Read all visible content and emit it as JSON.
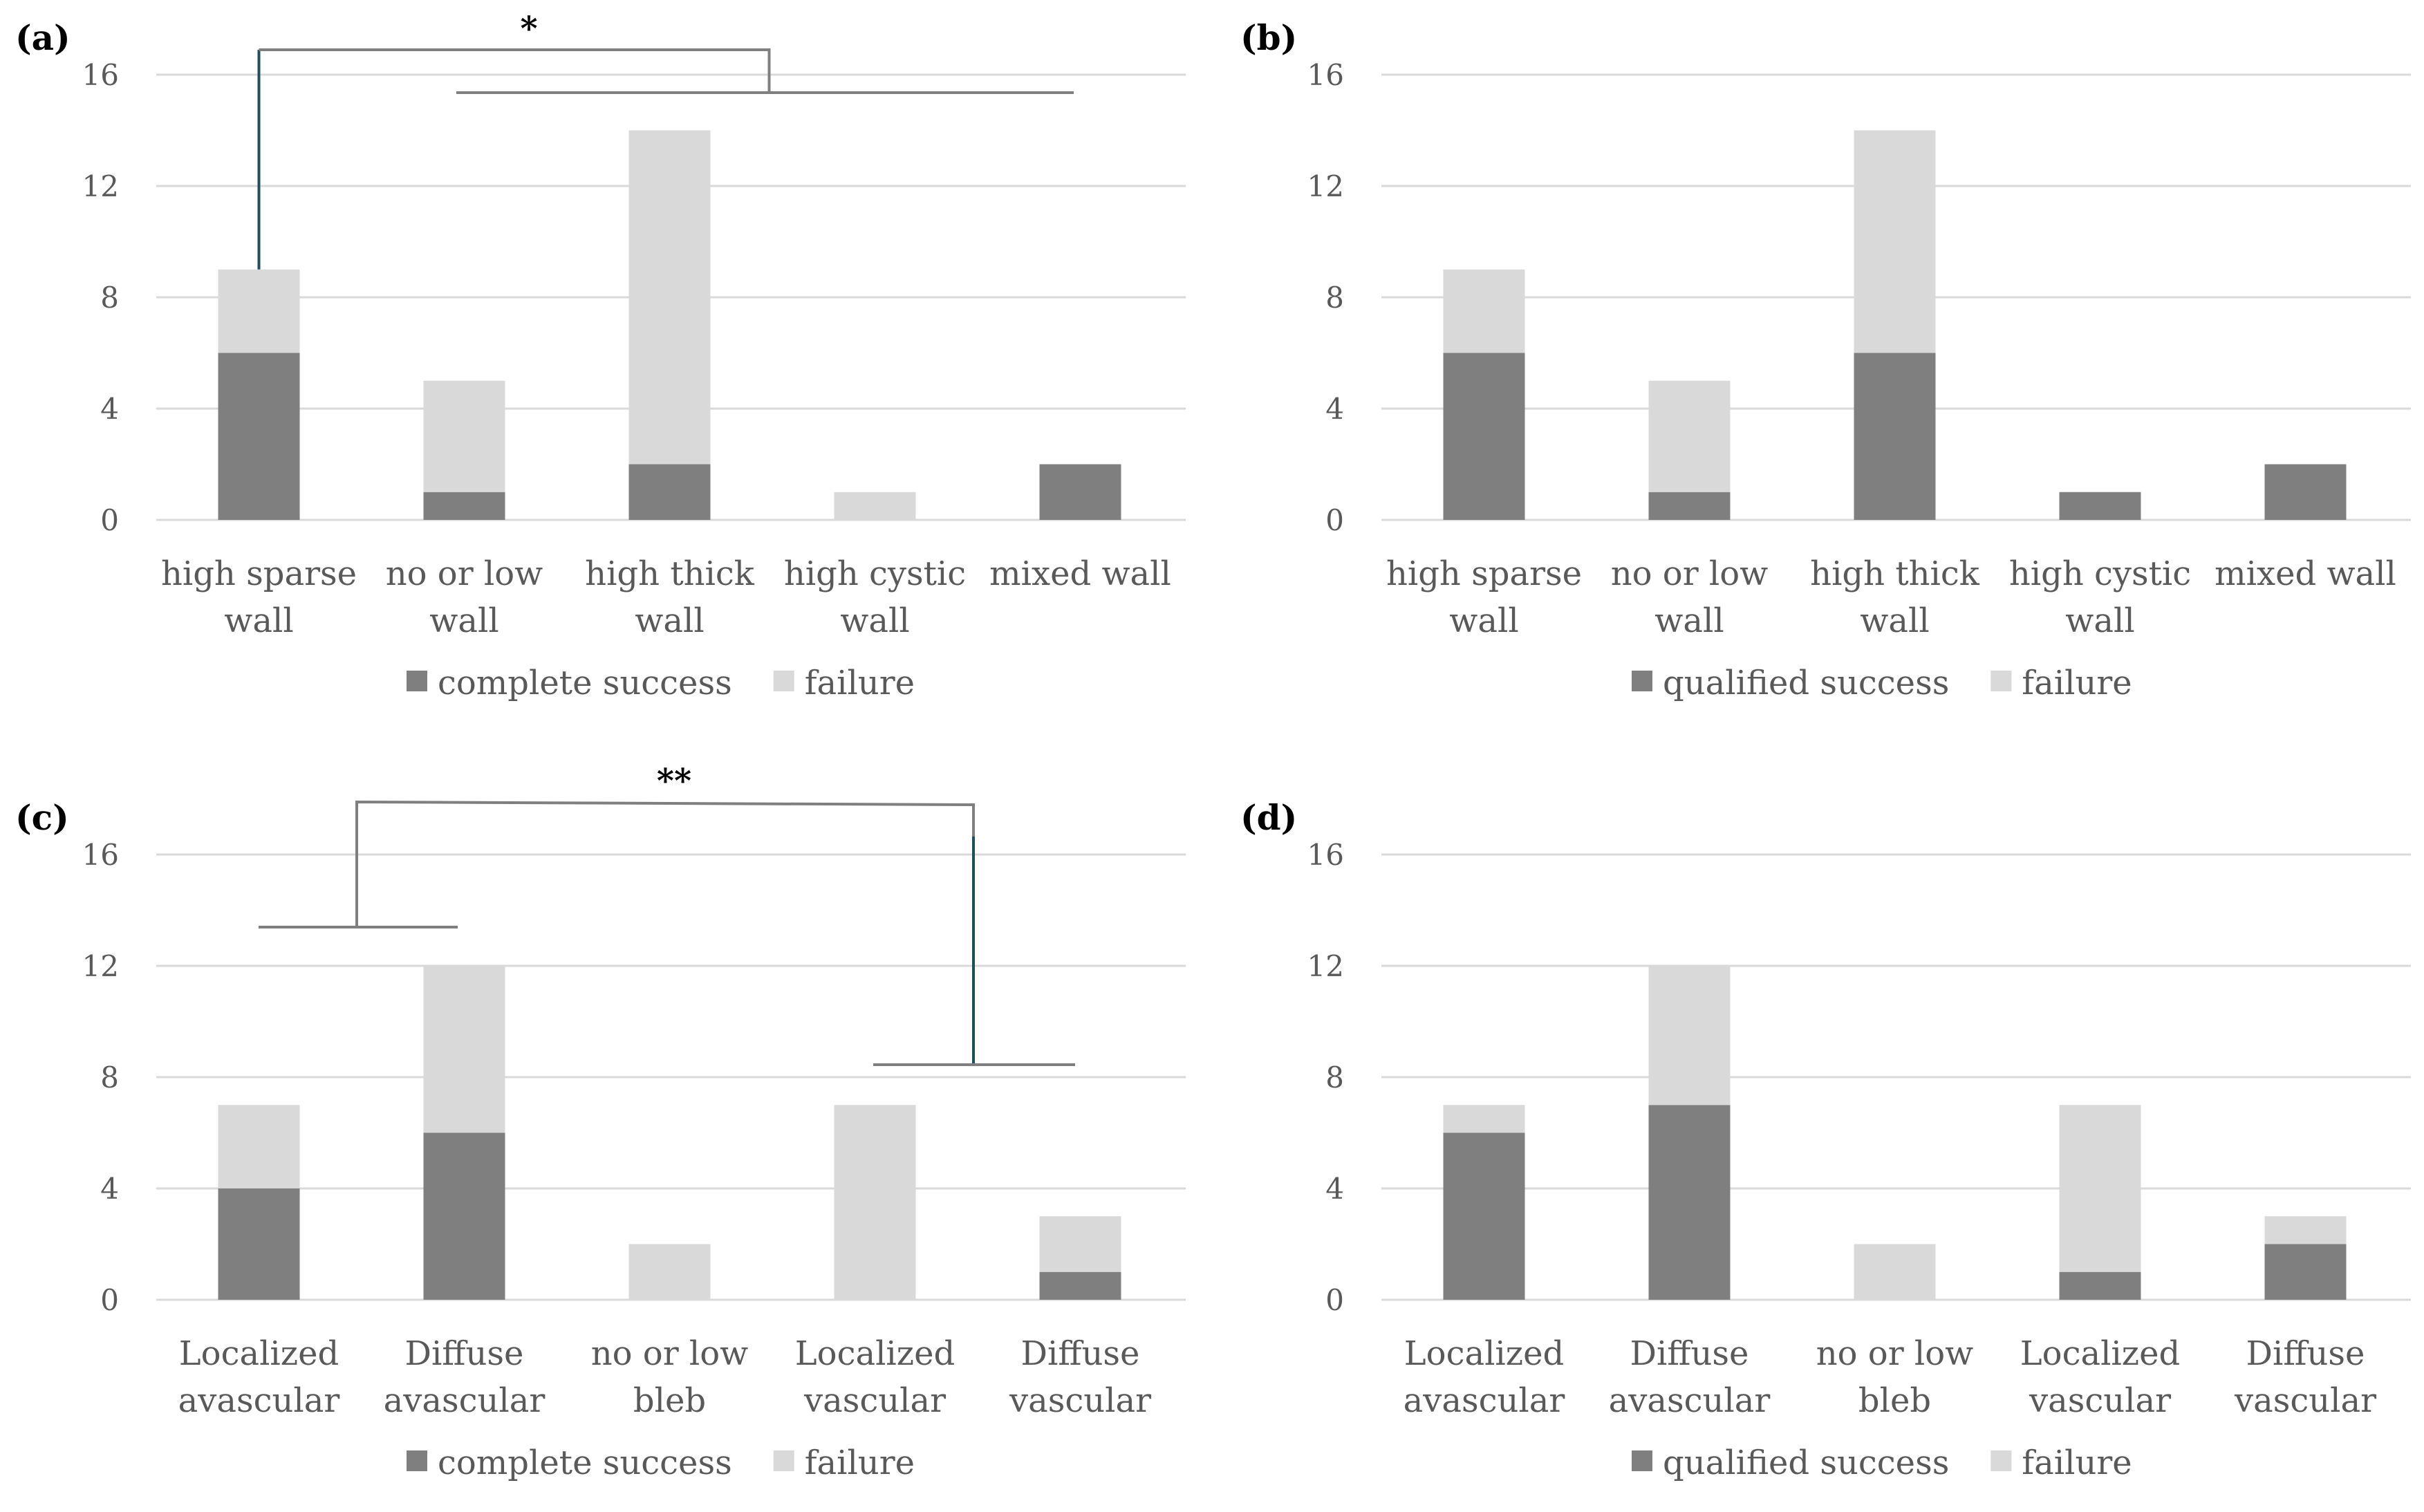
{
  "colors": {
    "success": "#7f7f7f",
    "failure": "#d9d9d9",
    "grid": "#d9d9d9",
    "text": "#595959",
    "bracket_gray": "#7f7f7f",
    "bracket_teal": "#1f4e5f"
  },
  "chart_data": [
    {
      "type": "bar",
      "panel": "(a)",
      "stacked": true,
      "categories": [
        [
          "high sparse",
          "wall"
        ],
        [
          "no or low",
          "wall"
        ],
        [
          "high thick",
          "wall"
        ],
        [
          "high cystic",
          "wall"
        ],
        [
          "mixed wall"
        ]
      ],
      "series": [
        {
          "name": "complete success",
          "values": [
            6,
            1,
            2,
            0,
            2
          ]
        },
        {
          "name": "failure",
          "values": [
            3,
            4,
            12,
            1,
            0
          ]
        }
      ],
      "ylim": [
        0,
        16
      ],
      "yticks": [
        "0",
        "4",
        "8",
        "12",
        "16"
      ],
      "grid": true,
      "legend": "bottom",
      "annotation": {
        "label": "*",
        "left_group": [
          0,
          0
        ],
        "right_group": [
          1,
          4
        ],
        "left_color": "teal"
      }
    },
    {
      "type": "bar",
      "panel": "(b)",
      "stacked": true,
      "categories": [
        [
          "high sparse",
          "wall"
        ],
        [
          "no or low",
          "wall"
        ],
        [
          "high thick",
          "wall"
        ],
        [
          "high cystic",
          "wall"
        ],
        [
          "mixed wall"
        ]
      ],
      "series": [
        {
          "name": "qualified success",
          "values": [
            6,
            1,
            6,
            1,
            2
          ]
        },
        {
          "name": "failure",
          "values": [
            3,
            4,
            8,
            0,
            0
          ]
        }
      ],
      "ylim": [
        0,
        16
      ],
      "yticks": [
        "0",
        "4",
        "8",
        "12",
        "16"
      ],
      "grid": true,
      "legend": "bottom"
    },
    {
      "type": "bar",
      "panel": "(c)",
      "stacked": true,
      "categories": [
        [
          "Localized",
          "avascular"
        ],
        [
          "Diffuse",
          "avascular"
        ],
        [
          "no or low",
          "bleb"
        ],
        [
          "Localized",
          "vascular"
        ],
        [
          "Diffuse",
          "vascular"
        ]
      ],
      "series": [
        {
          "name": "complete success",
          "values": [
            4,
            6,
            0,
            0,
            1
          ]
        },
        {
          "name": "failure",
          "values": [
            3,
            6,
            2,
            7,
            2
          ]
        }
      ],
      "ylim": [
        0,
        16
      ],
      "yticks": [
        "0",
        "4",
        "8",
        "12",
        "16"
      ],
      "grid": true,
      "legend": "bottom",
      "annotation": {
        "label": "**",
        "left_group": [
          0,
          1
        ],
        "right_group": [
          3,
          4
        ],
        "right_color": "teal"
      }
    },
    {
      "type": "bar",
      "panel": "(d)",
      "stacked": true,
      "categories": [
        [
          "Localized",
          "avascular"
        ],
        [
          "Diffuse",
          "avascular"
        ],
        [
          "no or low",
          "bleb"
        ],
        [
          "Localized",
          "vascular"
        ],
        [
          "Diffuse",
          "vascular"
        ]
      ],
      "series": [
        {
          "name": "qualified success",
          "values": [
            6,
            7,
            0,
            1,
            2
          ]
        },
        {
          "name": "failure",
          "values": [
            1,
            5,
            2,
            6,
            1
          ]
        }
      ],
      "ylim": [
        0,
        16
      ],
      "yticks": [
        "0",
        "4",
        "8",
        "12",
        "16"
      ],
      "grid": true,
      "legend": "bottom"
    }
  ]
}
